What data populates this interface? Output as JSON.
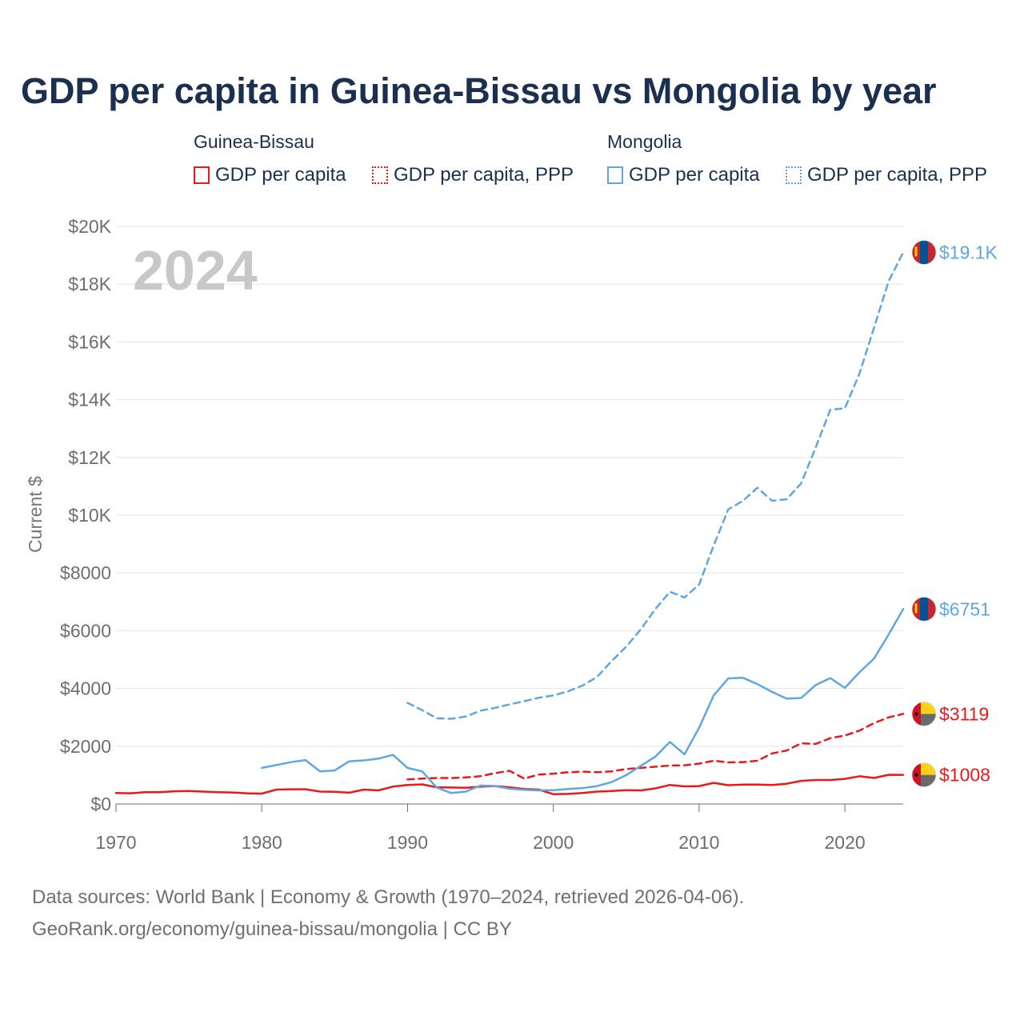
{
  "title": "GDP per capita in Guinea-Bissau vs Mongolia by year",
  "legend": {
    "groups": [
      {
        "name": "Guinea-Bissau",
        "color": "#e8191b",
        "items": [
          {
            "label": "GDP per capita",
            "style": "solid"
          },
          {
            "label": "GDP per capita, PPP",
            "style": "dotted"
          }
        ]
      },
      {
        "name": "Mongolia",
        "color": "#5ea6e4",
        "items": [
          {
            "label": "GDP per capita",
            "style": "solid"
          },
          {
            "label": "GDP per capita, PPP",
            "style": "dotted"
          }
        ]
      }
    ]
  },
  "footer": {
    "line1": "Data sources: World Bank | Economy & Growth (1970–2024, retrieved 2026-04-06).",
    "line2": "GeoRank.org/economy/guinea-bissau/mongolia | CC BY"
  },
  "chart_data": {
    "type": "line",
    "year_watermark": "2024",
    "ylabel": "Current $",
    "xlabel": "",
    "xlim": [
      1970,
      2024
    ],
    "ylim": [
      0,
      20000
    ],
    "grid": true,
    "x_ticks": [
      1970,
      1980,
      1990,
      2000,
      2010,
      2020
    ],
    "y_ticks": [
      {
        "value": 0,
        "label": "$0"
      },
      {
        "value": 2000,
        "label": "$2000"
      },
      {
        "value": 4000,
        "label": "$4000"
      },
      {
        "value": 6000,
        "label": "$6000"
      },
      {
        "value": 8000,
        "label": "$8000"
      },
      {
        "value": 10000,
        "label": "$10K"
      },
      {
        "value": 12000,
        "label": "$12K"
      },
      {
        "value": 14000,
        "label": "$14K"
      },
      {
        "value": 16000,
        "label": "$16K"
      },
      {
        "value": 18000,
        "label": "$18K"
      },
      {
        "value": 20000,
        "label": "$20K"
      }
    ],
    "series": [
      {
        "name": "Guinea-Bissau GDP per capita",
        "country": "Guinea-Bissau",
        "color": "#e8191b",
        "dash": "solid",
        "end_label": "$1008",
        "flag": "guinea-bissau",
        "start_year": 1970,
        "values": [
          380,
          370,
          410,
          410,
          440,
          450,
          430,
          410,
          400,
          370,
          360,
          500,
          510,
          510,
          430,
          420,
          390,
          500,
          470,
          600,
          660,
          680,
          580,
          570,
          560,
          600,
          620,
          580,
          520,
          500,
          340,
          350,
          380,
          430,
          450,
          480,
          470,
          540,
          660,
          610,
          620,
          730,
          650,
          670,
          670,
          660,
          700,
          800,
          830,
          830,
          870,
          960,
          900,
          1010,
          1008
        ]
      },
      {
        "name": "Guinea-Bissau GDP per capita, PPP",
        "country": "Guinea-Bissau",
        "color": "#e8191b",
        "dash": "dashed",
        "end_label": "$3119",
        "flag": "guinea-bissau",
        "start_year": 1990,
        "values": [
          850,
          880,
          900,
          900,
          920,
          960,
          1070,
          1150,
          880,
          1020,
          1050,
          1100,
          1120,
          1100,
          1130,
          1210,
          1250,
          1290,
          1330,
          1340,
          1400,
          1500,
          1440,
          1450,
          1500,
          1750,
          1850,
          2100,
          2080,
          2280,
          2370,
          2540,
          2800,
          3000,
          3119
        ]
      },
      {
        "name": "Mongolia GDP per capita",
        "country": "Mongolia",
        "color": "#5ea6e4",
        "dash": "solid",
        "end_label": "$6751",
        "flag": "mongolia",
        "start_year": 1980,
        "values": [
          1250,
          1350,
          1450,
          1520,
          1130,
          1160,
          1480,
          1510,
          1570,
          1700,
          1250,
          1130,
          570,
          380,
          430,
          640,
          620,
          530,
          490,
          470,
          480,
          520,
          550,
          620,
          760,
          1000,
          1320,
          1640,
          2150,
          1720,
          2640,
          3760,
          4350,
          4370,
          4150,
          3880,
          3650,
          3670,
          4120,
          4360,
          4020,
          4560,
          5040,
          5870,
          6751
        ]
      },
      {
        "name": "Mongolia GDP per capita, PPP",
        "country": "Mongolia",
        "color": "#5ea6e4",
        "dash": "dashed",
        "end_label": "$19.1K",
        "flag": "mongolia",
        "start_year": 1990,
        "values": [
          3500,
          3250,
          2970,
          2950,
          3030,
          3230,
          3330,
          3450,
          3560,
          3680,
          3760,
          3900,
          4100,
          4400,
          4950,
          5450,
          6050,
          6750,
          7350,
          7150,
          7600,
          8950,
          10200,
          10500,
          10950,
          10500,
          10550,
          11100,
          12350,
          13650,
          13700,
          14900,
          16500,
          18100,
          19100
        ]
      }
    ]
  }
}
